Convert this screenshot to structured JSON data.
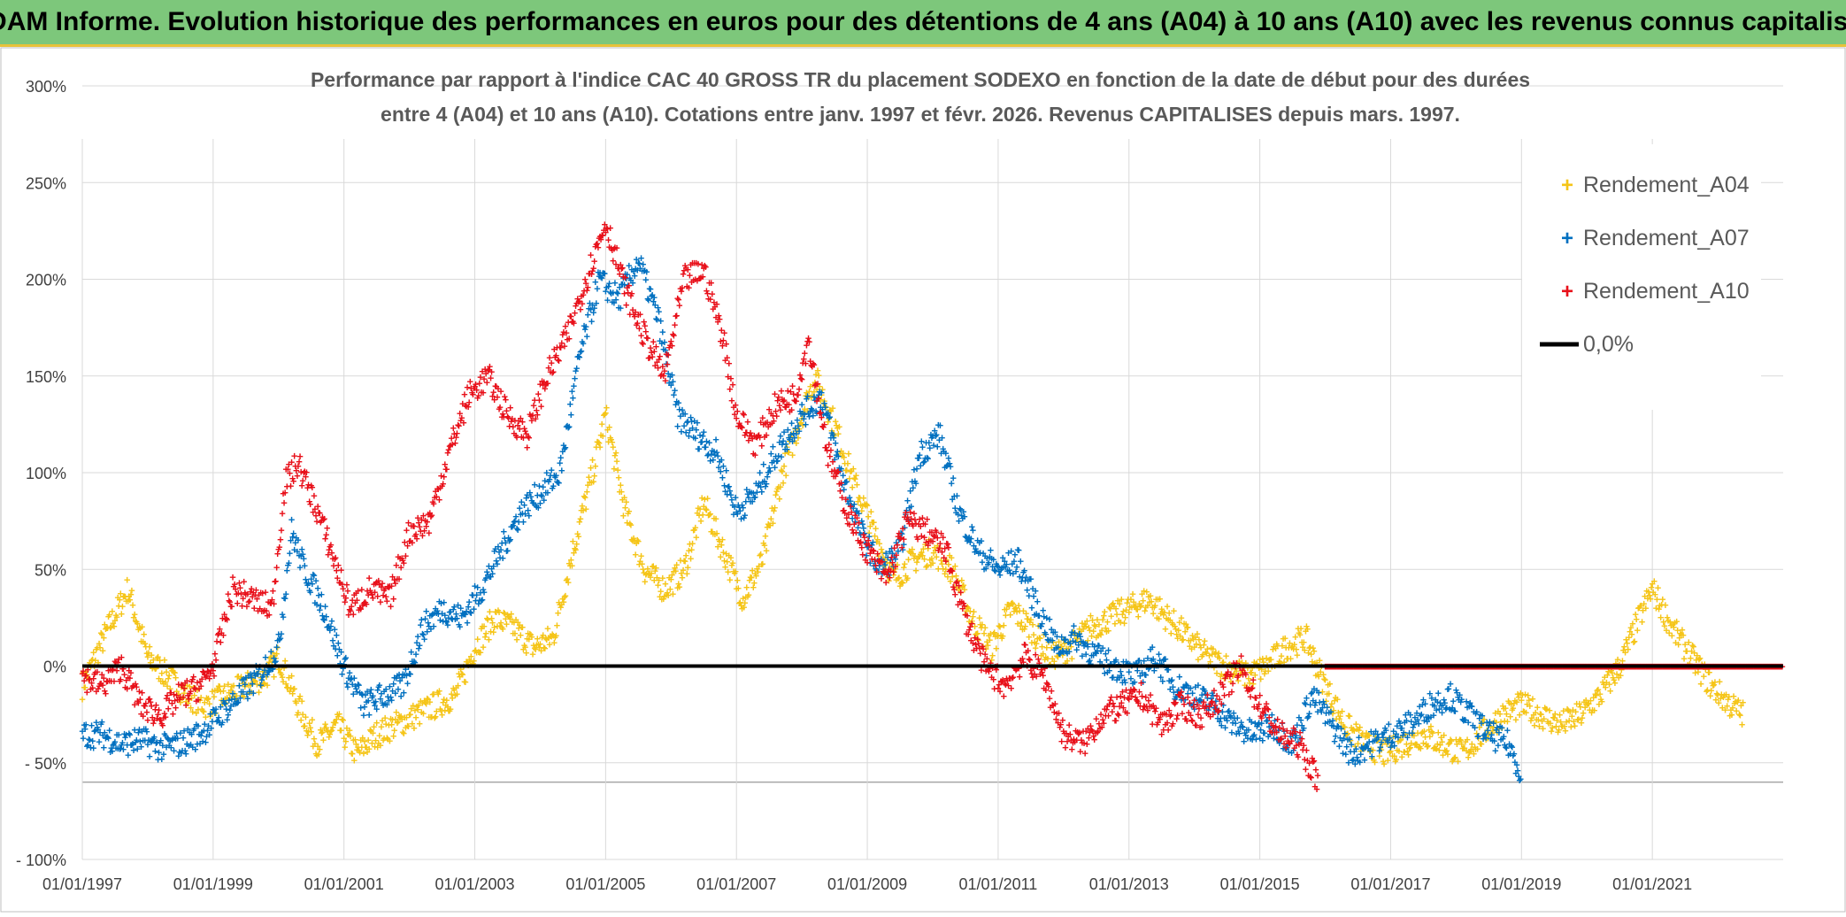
{
  "banner": {
    "title": "ADAM Informe. Evolution historique des performances en euros pour des détentions de 4 ans (A04) à 10 ans (A10) avec les revenus connus capitalisés"
  },
  "colors": {
    "banner_bg": "#7dc77b",
    "A04": "#f5c518",
    "A07": "#0070c0",
    "A10": "#e8101a",
    "zero_line": "#000000",
    "grid": "#d9d9d9"
  },
  "chart_data": {
    "type": "scatter",
    "title_line1": "Performance par rapport à l'indice CAC 40 GROSS TR  du placement SODEXO en fonction de la date de début pour des durées",
    "title_line2": "entre 4 (A04) et 10 ans (A10). Cotations entre janv. 1997 et févr. 2026. Revenus CAPITALISES depuis mars. 1997.",
    "xlabel": "",
    "ylabel": "",
    "x_range": [
      1997.0,
      2023.0
    ],
    "ylim": [
      -100,
      300
    ],
    "y_ticks": [
      300,
      250,
      200,
      150,
      100,
      50,
      0,
      -50,
      -100
    ],
    "y_tick_labels": [
      "300%",
      "250%",
      "200%",
      "150%",
      "100%",
      "50%",
      "0%",
      "- 50%",
      "- 100%"
    ],
    "x_tick_labels": [
      "01/01/1997",
      "01/01/1999",
      "01/01/2001",
      "01/01/2003",
      "01/01/2005",
      "01/01/2007",
      "01/01/2009",
      "01/01/2011",
      "01/01/2013",
      "01/01/2015",
      "01/01/2017",
      "01/01/2019",
      "01/01/2021"
    ],
    "x_tick_years": [
      1997,
      1999,
      2001,
      2003,
      2005,
      2007,
      2009,
      2011,
      2013,
      2015,
      2017,
      2019,
      2021
    ],
    "legend_position": "top-right",
    "series": [
      {
        "name": "Rendement_A04",
        "key": "A04",
        "x": [
          1997.0,
          1997.4,
          1997.7,
          1998.0,
          1998.3,
          1998.6,
          1998.9,
          1999.2,
          1999.5,
          1999.8,
          2000.0,
          2000.3,
          2000.6,
          2000.9,
          2001.2,
          2001.5,
          2001.8,
          2002.1,
          2002.4,
          2002.7,
          2003.0,
          2003.3,
          2003.6,
          2003.9,
          2004.2,
          2004.5,
          2004.8,
          2005.0,
          2005.3,
          2005.6,
          2005.9,
          2006.2,
          2006.5,
          2006.8,
          2007.1,
          2007.4,
          2007.7,
          2008.0,
          2008.2,
          2008.5,
          2008.8,
          2009.1,
          2009.4,
          2009.7,
          2010.0,
          2010.3,
          2010.6,
          2010.9,
          2011.2,
          2011.5,
          2011.8,
          2012.1,
          2012.4,
          2012.7,
          2013.0,
          2013.3,
          2013.6,
          2013.9,
          2014.2,
          2014.5,
          2014.8,
          2015.1,
          2015.4,
          2015.7,
          2016.0,
          2016.3,
          2016.6,
          2016.9,
          2017.2,
          2017.5,
          2017.8,
          2018.1,
          2018.4,
          2018.7,
          2019.0,
          2019.3,
          2019.6,
          2019.9,
          2020.2,
          2020.5,
          2020.8,
          2021.0,
          2021.3,
          2021.6,
          2021.9,
          2022.2,
          2022.4
        ],
        "values": [
          -10,
          20,
          40,
          5,
          -5,
          -15,
          -20,
          -15,
          -10,
          -5,
          5,
          -20,
          -40,
          -30,
          -45,
          -35,
          -30,
          -25,
          -20,
          -15,
          10,
          25,
          20,
          10,
          15,
          60,
          100,
          130,
          80,
          50,
          40,
          50,
          85,
          60,
          35,
          55,
          100,
          130,
          150,
          125,
          95,
          70,
          45,
          55,
          60,
          50,
          25,
          10,
          30,
          20,
          5,
          10,
          20,
          25,
          30,
          35,
          25,
          15,
          5,
          0,
          -5,
          0,
          10,
          15,
          -10,
          -30,
          -40,
          -45,
          -40,
          -35,
          -40,
          -45,
          -35,
          -25,
          -20,
          -25,
          -30,
          -25,
          -15,
          0,
          25,
          40,
          20,
          5,
          -10,
          -20,
          -25
        ]
      },
      {
        "name": "Rendement_A07",
        "key": "A07",
        "x": [
          1997.0,
          1997.3,
          1997.6,
          1997.9,
          1998.2,
          1998.5,
          1998.8,
          1999.1,
          1999.4,
          1999.7,
          2000.0,
          2000.2,
          2000.4,
          2000.7,
          2001.0,
          2001.3,
          2001.6,
          2001.9,
          2002.2,
          2002.5,
          2002.8,
          2003.1,
          2003.4,
          2003.7,
          2004.0,
          2004.3,
          2004.6,
          2004.9,
          2005.2,
          2005.5,
          2005.8,
          2006.1,
          2006.4,
          2006.7,
          2007.0,
          2007.3,
          2007.6,
          2008.0,
          2008.3,
          2008.6,
          2008.9,
          2009.2,
          2009.5,
          2009.8,
          2010.1,
          2010.4,
          2010.7,
          2011.0,
          2011.3,
          2011.6,
          2011.9,
          2012.2,
          2012.5,
          2012.8,
          2013.1,
          2013.4,
          2013.7,
          2014.0,
          2014.3,
          2014.6,
          2014.9,
          2015.2,
          2015.5,
          2015.8,
          2016.1,
          2016.4,
          2016.7,
          2017.0,
          2017.3,
          2017.6,
          2017.9,
          2018.2,
          2018.5,
          2018.8,
          2019.0
        ],
        "values": [
          -35,
          -35,
          -40,
          -38,
          -42,
          -40,
          -35,
          -25,
          -15,
          -5,
          10,
          70,
          50,
          30,
          0,
          -20,
          -15,
          -10,
          20,
          30,
          25,
          40,
          60,
          80,
          90,
          100,
          160,
          200,
          190,
          210,
          180,
          130,
          120,
          110,
          80,
          90,
          110,
          130,
          140,
          100,
          70,
          50,
          60,
          110,
          120,
          80,
          60,
          50,
          55,
          30,
          10,
          15,
          5,
          0,
          -5,
          5,
          -10,
          -15,
          -20,
          -30,
          -35,
          -30,
          -40,
          -15,
          -30,
          -45,
          -40,
          -35,
          -30,
          -20,
          -15,
          -25,
          -35,
          -40,
          -55
        ]
      },
      {
        "name": "Rendement_A10",
        "key": "A10",
        "x": [
          1997.0,
          1997.3,
          1997.6,
          1997.9,
          1998.2,
          1998.5,
          1998.8,
          1999.0,
          1999.3,
          1999.6,
          1999.9,
          2000.1,
          2000.3,
          2000.6,
          2000.9,
          2001.1,
          2001.4,
          2001.7,
          2002.0,
          2002.3,
          2002.6,
          2002.9,
          2003.2,
          2003.5,
          2003.8,
          2004.1,
          2004.4,
          2004.7,
          2005.0,
          2005.3,
          2005.6,
          2005.9,
          2006.2,
          2006.5,
          2006.8,
          2007.0,
          2007.3,
          2007.6,
          2007.9,
          2008.1,
          2008.4,
          2008.7,
          2009.0,
          2009.3,
          2009.6,
          2009.9,
          2010.2,
          2010.5,
          2010.8,
          2011.1,
          2011.4,
          2011.7,
          2012.0,
          2012.3,
          2012.6,
          2012.9,
          2013.2,
          2013.5,
          2013.8,
          2014.1,
          2014.4,
          2014.7,
          2015.0,
          2015.3,
          2015.6,
          2015.9
        ],
        "values": [
          -5,
          -10,
          0,
          -20,
          -25,
          -15,
          -10,
          0,
          40,
          35,
          30,
          95,
          105,
          80,
          50,
          30,
          40,
          35,
          70,
          75,
          110,
          140,
          150,
          130,
          120,
          150,
          170,
          200,
          230,
          195,
          170,
          150,
          200,
          205,
          170,
          130,
          115,
          135,
          140,
          170,
          110,
          80,
          60,
          45,
          75,
          70,
          60,
          25,
          0,
          -10,
          5,
          -5,
          -35,
          -40,
          -25,
          -20,
          -15,
          -30,
          -20,
          -25,
          -15,
          0,
          -20,
          -35,
          -40,
          -60
        ]
      },
      {
        "name": "Rendement_A10_zero",
        "key": "A10",
        "x": [
          2016.0,
          2023.0
        ],
        "values": [
          0,
          0
        ]
      }
    ],
    "reference_line": {
      "name": "0,0%",
      "value": 0
    },
    "legend": [
      "Rendement_A04",
      "Rendement_A07",
      "Rendement_A10",
      "0,0%"
    ]
  }
}
